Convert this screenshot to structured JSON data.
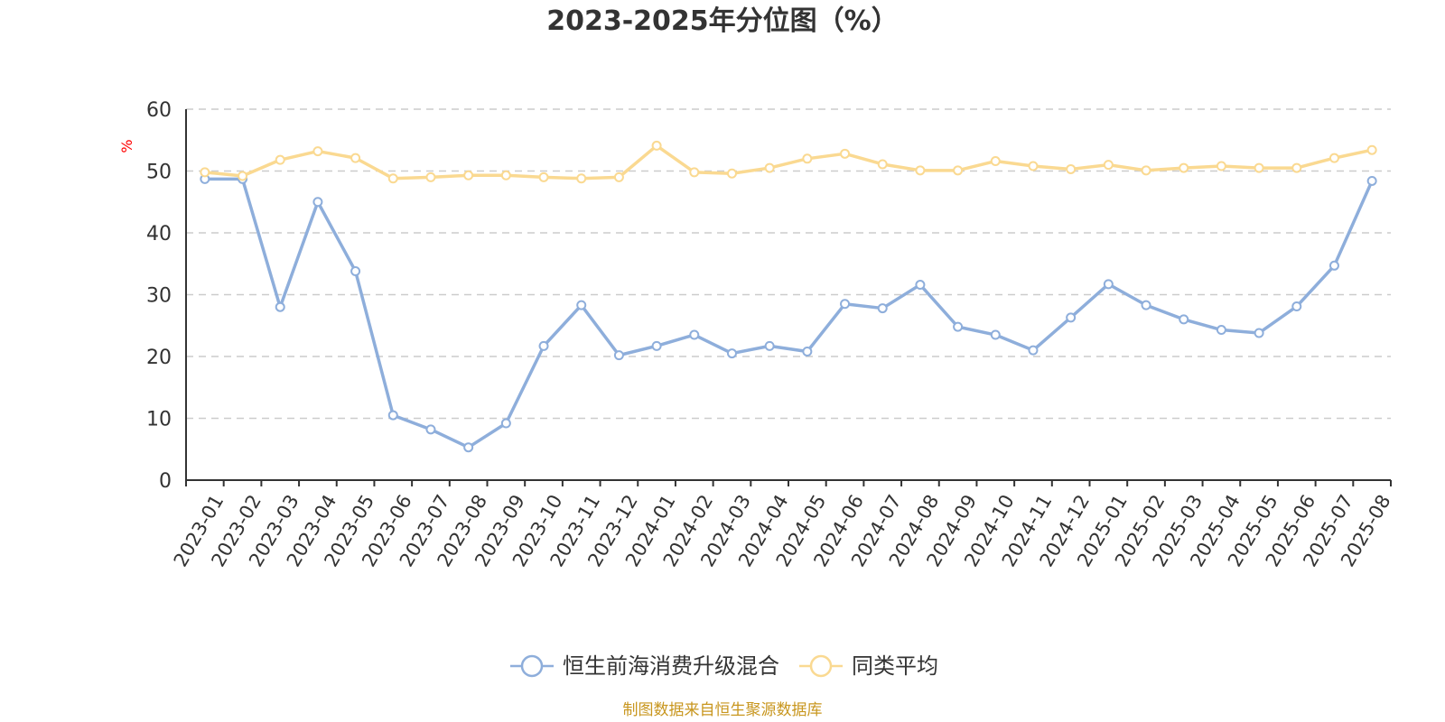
{
  "chart_data": {
    "type": "line",
    "title": "2023-2025年分位图（%）",
    "unit_label": "%",
    "ylim": [
      0,
      60
    ],
    "yticks": [
      0,
      10,
      20,
      30,
      40,
      50,
      60
    ],
    "grid": true,
    "legend_position": "bottom-center",
    "categories": [
      "2023-01",
      "2023-02",
      "2023-03",
      "2023-04",
      "2023-05",
      "2023-06",
      "2023-07",
      "2023-08",
      "2023-09",
      "2023-10",
      "2023-11",
      "2023-12",
      "2024-01",
      "2024-02",
      "2024-03",
      "2024-04",
      "2024-05",
      "2024-06",
      "2024-07",
      "2024-08",
      "2024-09",
      "2024-10",
      "2024-11",
      "2024-12",
      "2025-01",
      "2025-02",
      "2025-03",
      "2025-04",
      "2025-05",
      "2025-06",
      "2025-07",
      "2025-08"
    ],
    "series": [
      {
        "name": "恒生前海消费升级混合",
        "color": "#8eaedb",
        "values": [
          48.7,
          48.7,
          28.0,
          45.0,
          33.8,
          10.5,
          8.2,
          5.3,
          9.2,
          21.7,
          28.3,
          20.2,
          21.7,
          23.5,
          20.5,
          21.7,
          20.8,
          28.5,
          27.8,
          31.6,
          24.8,
          23.5,
          21.0,
          26.3,
          31.7,
          28.3,
          26.0,
          24.3,
          23.8,
          28.1,
          34.7,
          48.4
        ]
      },
      {
        "name": "同类平均",
        "color": "#fad991",
        "values": [
          49.8,
          49.2,
          51.8,
          53.2,
          52.1,
          48.8,
          49.0,
          49.3,
          49.3,
          49.0,
          48.8,
          49.0,
          54.1,
          49.8,
          49.6,
          50.5,
          52.0,
          52.8,
          51.1,
          50.1,
          50.1,
          51.6,
          50.8,
          50.3,
          51.0,
          50.1,
          50.5,
          50.8,
          50.5,
          50.5,
          52.1,
          53.4
        ]
      }
    ]
  },
  "footer": {
    "source": "制图数据来自恒生聚源数据库"
  }
}
